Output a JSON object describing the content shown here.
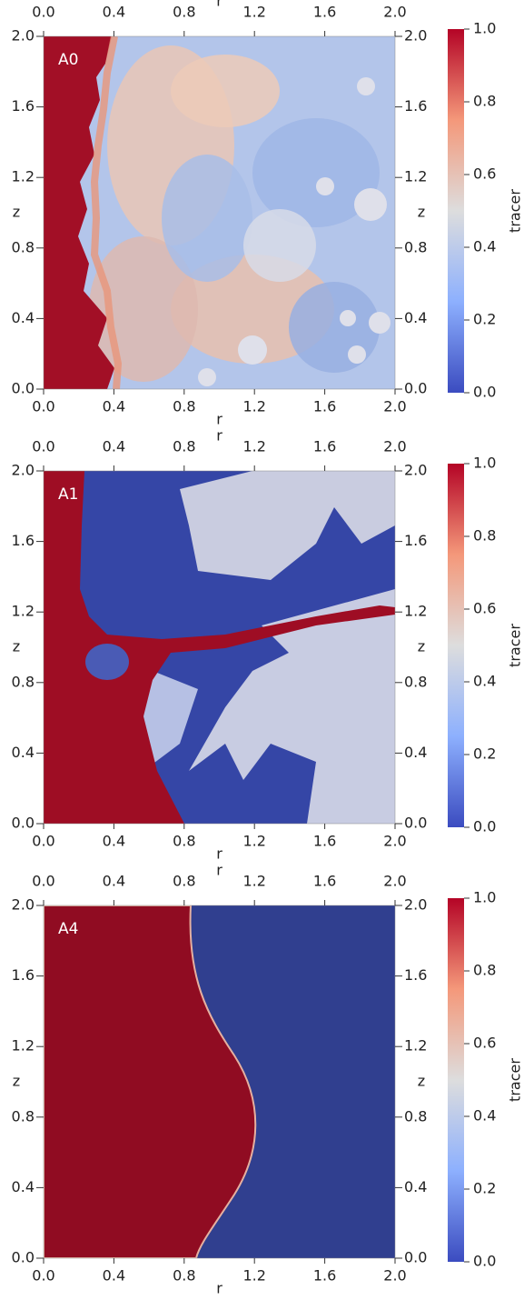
{
  "chart_data": [
    {
      "type": "field",
      "panel_label": "A0",
      "xlabel": "r",
      "ylabel": "z",
      "xlim": [
        0,
        2
      ],
      "ylim": [
        0,
        2
      ],
      "xticks": [
        {
          "value": 0,
          "label": "0.0"
        },
        0.4,
        0.8,
        1.2,
        1.6,
        {
          "value": 2,
          "label": "2.0"
        }
      ],
      "yticks": [
        {
          "value": 0,
          "label": "0.0"
        },
        0.4,
        0.8,
        1.2,
        1.6,
        {
          "value": 2,
          "label": "2.0"
        }
      ],
      "colorbar": {
        "label": "tracer",
        "lim": [
          0,
          1
        ],
        "ticks": [
          {
            "value": 0,
            "label": "0.0"
          },
          0.2,
          0.4,
          0.6,
          0.8,
          {
            "value": 1,
            "label": "1.0"
          }
        ],
        "colors": [
          "#3b4cc0",
          "#8db0fe",
          "#dddddd",
          "#f4987a",
          "#b40426"
        ]
      }
    },
    {
      "type": "field",
      "panel_label": "A1",
      "xlabel": "r",
      "ylabel": "z",
      "xlim": [
        0,
        2
      ],
      "ylim": [
        0,
        2
      ],
      "xticks": [
        {
          "value": 0,
          "label": "0.0"
        },
        0.4,
        0.8,
        1.2,
        1.6,
        {
          "value": 2,
          "label": "2.0"
        }
      ],
      "yticks": [
        {
          "value": 0,
          "label": "0.0"
        },
        0.4,
        0.8,
        1.2,
        1.6,
        {
          "value": 2,
          "label": "2.0"
        }
      ],
      "colorbar": {
        "label": "tracer",
        "lim": [
          0,
          1
        ],
        "ticks": [
          {
            "value": 0,
            "label": "0.0"
          },
          0.2,
          0.4,
          0.6,
          0.8,
          {
            "value": 1,
            "label": "1.0"
          }
        ],
        "colors": [
          "#3b4cc0",
          "#8db0fe",
          "#dddddd",
          "#f4987a",
          "#b40426"
        ]
      }
    },
    {
      "type": "field",
      "panel_label": "A4",
      "xlabel": "r",
      "ylabel": "z",
      "xlim": [
        0,
        2
      ],
      "ylim": [
        0,
        2
      ],
      "xticks": [
        {
          "value": 0,
          "label": "0.0"
        },
        0.4,
        0.8,
        1.2,
        1.6,
        {
          "value": 2,
          "label": "2.0"
        }
      ],
      "yticks": [
        {
          "value": 0,
          "label": "0.0"
        },
        0.4,
        0.8,
        1.2,
        1.6,
        {
          "value": 2,
          "label": "2.0"
        }
      ],
      "colorbar": {
        "label": "tracer",
        "lim": [
          0,
          1
        ],
        "ticks": [
          {
            "value": 0,
            "label": "0.0"
          },
          0.2,
          0.4,
          0.6,
          0.8,
          {
            "value": 1,
            "label": "1.0"
          }
        ],
        "colors": [
          "#3b4cc0",
          "#8db0fe",
          "#dddddd",
          "#f4987a",
          "#b40426"
        ]
      }
    }
  ]
}
